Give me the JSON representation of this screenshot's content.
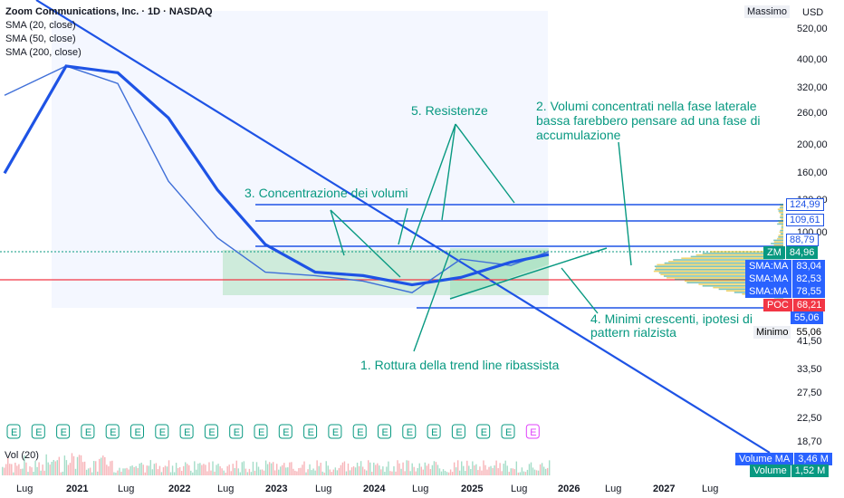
{
  "header": {
    "symbol_line": "Zoom Communications, Inc. · 1D · NASDAQ",
    "indicators": [
      "SMA (20, close)",
      "SMA (50, close)",
      "SMA (200, close)"
    ]
  },
  "price_axis": {
    "currency": "USD",
    "max_label": "Massimo",
    "min_label": "Minimo",
    "ticks": [
      "520,00",
      "400,00",
      "320,00",
      "260,00",
      "200,00",
      "160,00",
      "130,00",
      "100,00",
      "41,50",
      "33,50",
      "27,50",
      "22,50",
      "18,70"
    ],
    "tags": [
      {
        "name": "level-124",
        "text": "124,99",
        "bg": "#ffffff",
        "fg": "#1e53e5"
      },
      {
        "name": "level-109",
        "text": "109,61",
        "bg": "#ffffff",
        "fg": "#1e53e5"
      },
      {
        "name": "level-88",
        "text": "88,79",
        "bg": "#ffffff",
        "fg": "#1e53e5"
      },
      {
        "name": "zm",
        "label": "ZM",
        "text": "84,96",
        "bg": "#089981",
        "fg": "#ffffff"
      },
      {
        "name": "sma1",
        "label": "SMA:MA",
        "text": "83,04",
        "bg": "#2962ff",
        "fg": "#ffffff"
      },
      {
        "name": "sma2",
        "label": "SMA:MA",
        "text": "82,53",
        "bg": "#2962ff",
        "fg": "#ffffff"
      },
      {
        "name": "sma3",
        "label": "SMA:MA",
        "text": "78,55",
        "bg": "#2962ff",
        "fg": "#ffffff"
      },
      {
        "name": "poc",
        "label": "POC",
        "text": "68,21",
        "bg": "#f23645",
        "fg": "#ffffff"
      },
      {
        "name": "level-55",
        "text": "55,06",
        "bg": "#2962ff",
        "fg": "#ffffff"
      },
      {
        "name": "min",
        "text": "55,06",
        "bg": "#ffffff",
        "fg": "#131722"
      }
    ]
  },
  "volume_panel": {
    "label": "Vol (20)",
    "ma_label": "Volume MA",
    "ma_value": "3,46 M",
    "vol_label": "Volume",
    "vol_value": "1,52 M"
  },
  "time_axis": [
    "Lug",
    "2021",
    "Lug",
    "2022",
    "Lug",
    "2023",
    "Lug",
    "2024",
    "Lug",
    "2025",
    "Lug",
    "2026",
    "Lug",
    "2027",
    "Lug"
  ],
  "earnings_marker": "E",
  "annotations": [
    "5. Resistenze",
    "2. Volumi concentrati nella fase laterale bassa farebbero pensare ad una fase di accumulazione",
    "3. Concentrazione dei volumi",
    "4. Minimi crescenti, ipotesi di pattern rialzista",
    "1. Rottura della trend line ribassista"
  ],
  "colors": {
    "accent": "#089981",
    "blue": "#2962ff",
    "red": "#f23645",
    "grid": "#f0f3fa"
  },
  "chart_data": {
    "type": "line",
    "title": "Zoom Communications, Inc. · 1D · NASDAQ",
    "x": [
      "2020-07",
      "2021-01",
      "2021-07",
      "2022-01",
      "2022-07",
      "2023-01",
      "2023-07",
      "2024-01",
      "2024-07",
      "2025-01",
      "2025-07",
      "2025-11"
    ],
    "series": [
      {
        "name": "SMA (20, close)",
        "values": [
          300,
          380,
          330,
          150,
          95,
          72,
          70,
          67,
          61,
          80,
          76,
          85
        ]
      },
      {
        "name": "SMA (200, close)",
        "values": [
          160,
          380,
          360,
          250,
          140,
          90,
          72,
          70,
          65,
          69,
          78,
          83
        ]
      }
    ],
    "levels": [
      124.99,
      109.61,
      88.79,
      68.21,
      55.06
    ],
    "ylim": [
      18.7,
      520
    ],
    "scale": "log"
  }
}
